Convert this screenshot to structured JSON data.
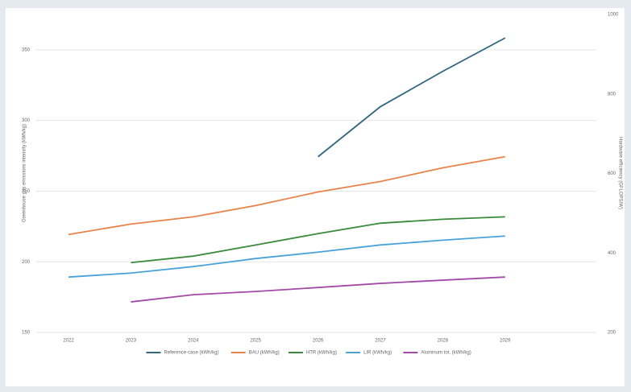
{
  "chart_data": {
    "type": "line",
    "y_label": "Greenhouse gas emissions intensity (kWh/kg)",
    "y2_label": "Hardware efficiency (GFLOPS/W)",
    "categories": [
      "2022",
      "2023",
      "2024",
      "2025",
      "2026",
      "2027",
      "2028",
      "2029"
    ],
    "series": [
      {
        "name": "Reference-case (kWh/kg)",
        "color": "#2f6680",
        "axis": "y2",
        "values": [
          null,
          null,
          null,
          null,
          642,
          768,
          857,
          941
        ]
      },
      {
        "name": "BAU (kWh/kg)",
        "color": "#e8834a",
        "values": [
          219.3,
          226.7,
          231.8,
          239.8,
          249.4,
          256.8,
          266.5,
          274.4
        ]
      },
      {
        "name": "HTR (kWh/kg)",
        "color": "#3a8a3a",
        "values": [
          null,
          199.4,
          204,
          211.9,
          219.9,
          227.3,
          230.1,
          231.8
        ]
      },
      {
        "name": "LIR (kWh/kg)",
        "color": "#4aa3d8",
        "values": [
          189.2,
          192,
          196.6,
          202.3,
          206.8,
          211.9,
          215.3,
          218.2
        ]
      },
      {
        "name": "Aluminum tot. (kWh/kg)",
        "color": "#a34aa8",
        "values": [
          null,
          171.6,
          176.7,
          179,
          181.8,
          184.7,
          187,
          189.2
        ]
      }
    ],
    "ylim": [
      150,
      375
    ],
    "yticks": [
      150,
      200,
      250,
      300,
      350
    ],
    "y2lim": [
      200,
      1000
    ],
    "y2ticks": [
      200,
      400,
      600,
      800,
      1000
    ],
    "grid": true
  }
}
